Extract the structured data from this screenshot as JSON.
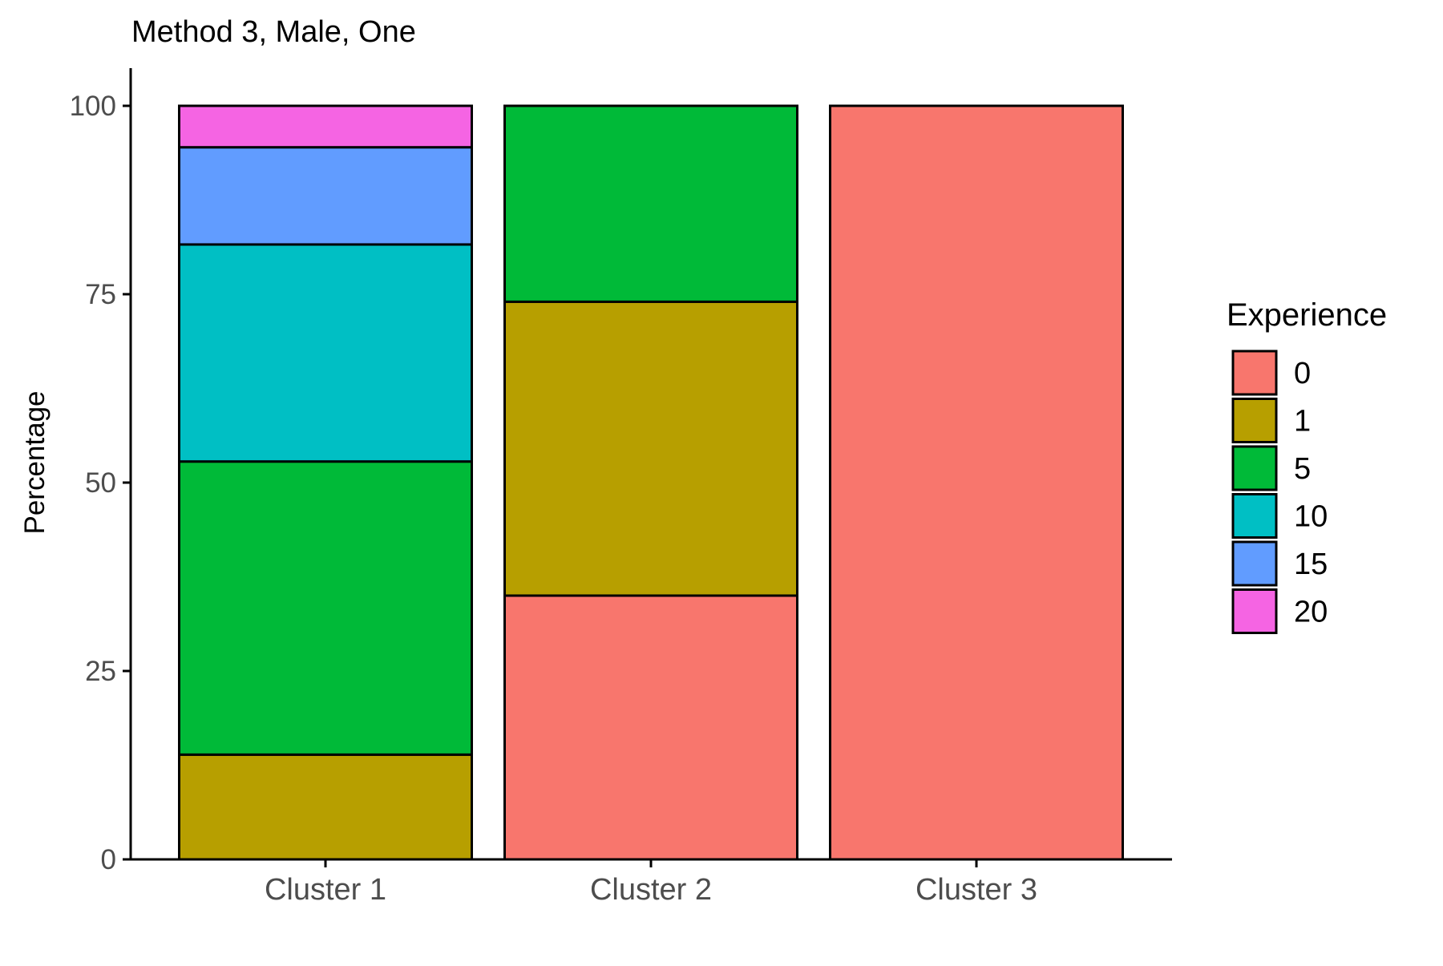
{
  "chart_data": {
    "type": "bar",
    "stacked": true,
    "title": "Method 3, Male, One",
    "xlabel": "",
    "ylabel": "Percentage",
    "ylim": [
      0,
      105
    ],
    "yticks": [
      0,
      25,
      50,
      75,
      100
    ],
    "categories": [
      "Cluster 1",
      "Cluster 2",
      "Cluster 3"
    ],
    "legend": {
      "title": "Experience",
      "position": "right"
    },
    "grid": false,
    "series": [
      {
        "name": "0",
        "color": "#F8766D",
        "values": [
          0,
          35,
          100
        ]
      },
      {
        "name": "1",
        "color": "#B79F00",
        "values": [
          13.9,
          39,
          0
        ]
      },
      {
        "name": "5",
        "color": "#00BA38",
        "values": [
          38.9,
          26,
          0
        ]
      },
      {
        "name": "10",
        "color": "#00BFC4",
        "values": [
          28.8,
          0,
          0
        ]
      },
      {
        "name": "15",
        "color": "#619CFF",
        "values": [
          12.9,
          0,
          0
        ]
      },
      {
        "name": "20",
        "color": "#F564E3",
        "values": [
          5.5,
          0,
          0
        ]
      }
    ]
  }
}
